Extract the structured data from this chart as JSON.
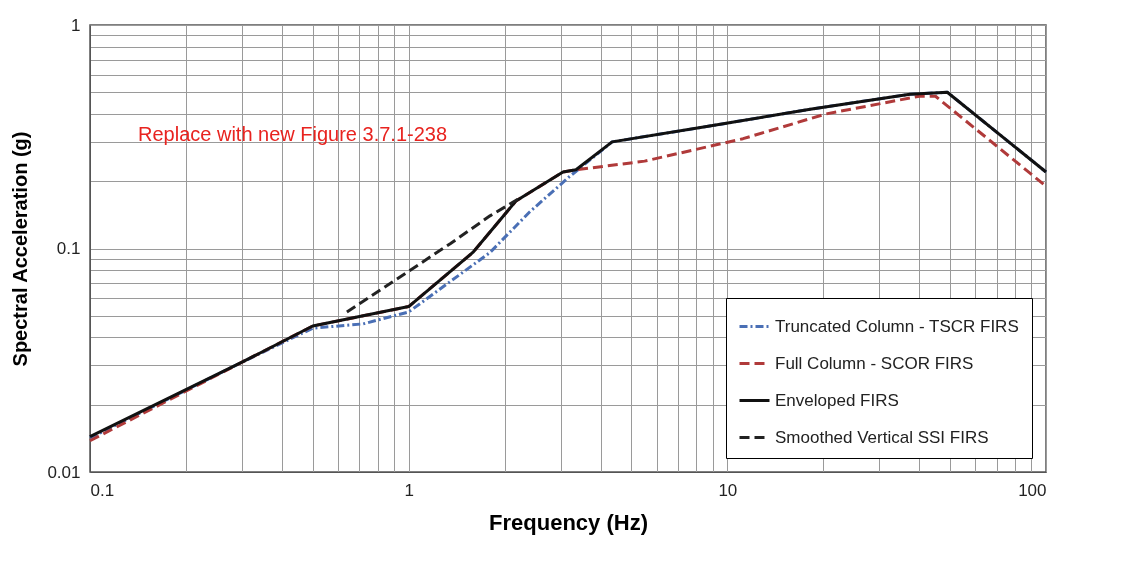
{
  "chart_data": {
    "type": "line",
    "xlabel": "Frequency (Hz)",
    "ylabel": "Spectral Acceleration (g)",
    "log": "xy",
    "grid": true,
    "legend": "bottom right",
    "xlim": [
      0.1,
      100
    ],
    "ylim": [
      0.01,
      1
    ],
    "xticks": [
      0.1,
      {
        "value": 0.2,
        "label": null
      },
      {
        "value": 0.3,
        "label": null
      },
      {
        "value": 0.4,
        "label": null
      },
      {
        "value": 0.5,
        "label": null
      },
      {
        "value": 0.6,
        "label": null
      },
      {
        "value": 0.7,
        "label": null
      },
      {
        "value": 0.8,
        "label": null
      },
      {
        "value": 0.9,
        "label": null
      },
      1,
      {
        "value": 2,
        "label": null
      },
      {
        "value": 3,
        "label": null
      },
      {
        "value": 4,
        "label": null
      },
      {
        "value": 5,
        "label": null
      },
      {
        "value": 6,
        "label": null
      },
      {
        "value": 7,
        "label": null
      },
      {
        "value": 8,
        "label": null
      },
      {
        "value": 9,
        "label": null
      },
      10,
      {
        "value": 20,
        "label": null
      },
      {
        "value": 30,
        "label": null
      },
      {
        "value": 40,
        "label": null
      },
      {
        "value": 50,
        "label": null
      },
      {
        "value": 60,
        "label": null
      },
      {
        "value": 70,
        "label": null
      },
      {
        "value": 80,
        "label": null
      },
      {
        "value": 90,
        "label": null
      },
      100
    ],
    "yticks": [
      0.01,
      {
        "value": 0.02,
        "label": null
      },
      {
        "value": 0.03,
        "label": null
      },
      {
        "value": 0.04,
        "label": null
      },
      {
        "value": 0.05,
        "label": null
      },
      {
        "value": 0.06,
        "label": null
      },
      {
        "value": 0.07,
        "label": null
      },
      {
        "value": 0.08,
        "label": null
      },
      {
        "value": 0.09,
        "label": null
      },
      0.1,
      {
        "value": 0.2,
        "label": null
      },
      {
        "value": 0.3,
        "label": null
      },
      {
        "value": 0.4,
        "label": null
      },
      {
        "value": 0.5,
        "label": null
      },
      {
        "value": 0.6,
        "label": null
      },
      {
        "value": 0.7,
        "label": null
      },
      {
        "value": 0.8,
        "label": null
      },
      {
        "value": 0.9,
        "label": null
      },
      1
    ],
    "annotations": [
      "Replace with new Figure 3.7.1-238"
    ],
    "series": [
      {
        "name": "Truncated Column - TSCR FIRS",
        "color": "#4a6fb5",
        "line_style": "dotted",
        "x": [
          0.1,
          0.3,
          0.5,
          0.72,
          1,
          1.8,
          2.4,
          3.2,
          4.35,
          8.8,
          18.2,
          37.4,
          49,
          100
        ],
        "values": [
          0.0142,
          0.031,
          0.044,
          0.046,
          0.052,
          0.096,
          0.146,
          0.21,
          0.3,
          0.353,
          0.42,
          0.49,
          0.5,
          0.22
        ]
      },
      {
        "name": "Full Column - SCOR FIRS",
        "color": "#b03a3a",
        "line_style": "dashed",
        "x": [
          0.1,
          0.3,
          0.5,
          0.72,
          1,
          1.59,
          2.17,
          3.05,
          3.35,
          5.5,
          11.2,
          20.4,
          40,
          45,
          100
        ],
        "values": [
          0.0138,
          0.031,
          0.045,
          0.05,
          0.055,
          0.096,
          0.163,
          0.22,
          0.225,
          0.246,
          0.31,
          0.4,
          0.48,
          0.48,
          0.19
        ]
      },
      {
        "name": "Enveloped FIRS",
        "color": "#111111",
        "line_style": "solid",
        "x": [
          0.1,
          0.3,
          0.5,
          0.72,
          1,
          1.59,
          2.17,
          3.05,
          3.35,
          4.35,
          8.8,
          18.2,
          37.4,
          49,
          100
        ],
        "values": [
          0.0144,
          0.031,
          0.045,
          0.05,
          0.055,
          0.096,
          0.163,
          0.22,
          0.225,
          0.3,
          0.353,
          0.42,
          0.49,
          0.5,
          0.22
        ]
      },
      {
        "name": "Smoothed Vertical SSI FIRS",
        "color": "#222222",
        "line_style": "dashed",
        "x": [
          0.64,
          1.35,
          1.8,
          2.2
        ],
        "values": [
          0.052,
          0.105,
          0.14,
          0.166
        ]
      }
    ]
  }
}
